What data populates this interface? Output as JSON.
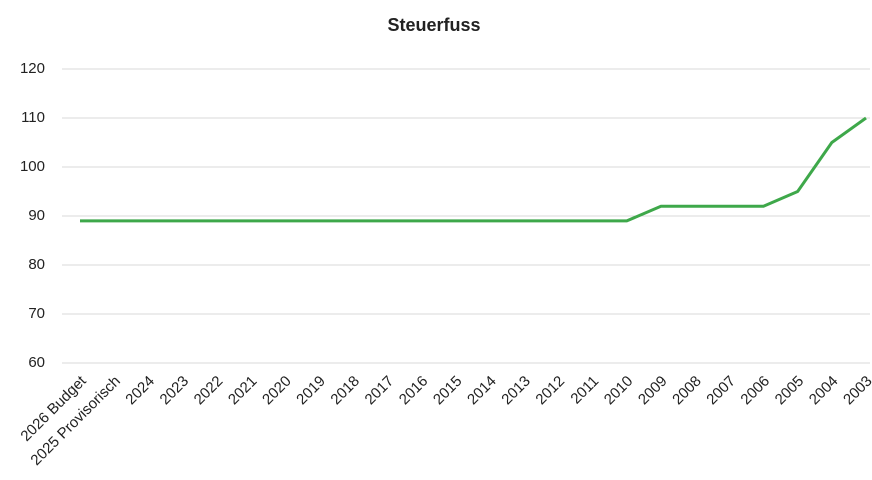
{
  "chart_data": {
    "type": "line",
    "title": "Steuerfuss",
    "categories": [
      "2026 Budget",
      "2025 Provisorisch",
      "2024",
      "2023",
      "2022",
      "2021",
      "2020",
      "2019",
      "2018",
      "2017",
      "2016",
      "2015",
      "2014",
      "2013",
      "2012",
      "2011",
      "2010",
      "2009",
      "2008",
      "2007",
      "2006",
      "2005",
      "2004",
      "2003"
    ],
    "series": [
      {
        "name": "Steuerfuss",
        "color": "#3ea84a",
        "values": [
          89,
          89,
          89,
          89,
          89,
          89,
          89,
          89,
          89,
          89,
          89,
          89,
          89,
          89,
          89,
          89,
          89,
          92,
          92,
          92,
          92,
          95,
          105,
          110
        ]
      }
    ],
    "ylim": [
      60,
      120
    ],
    "yticks": [
      60,
      70,
      80,
      90,
      100,
      110,
      120
    ],
    "grid": true
  }
}
